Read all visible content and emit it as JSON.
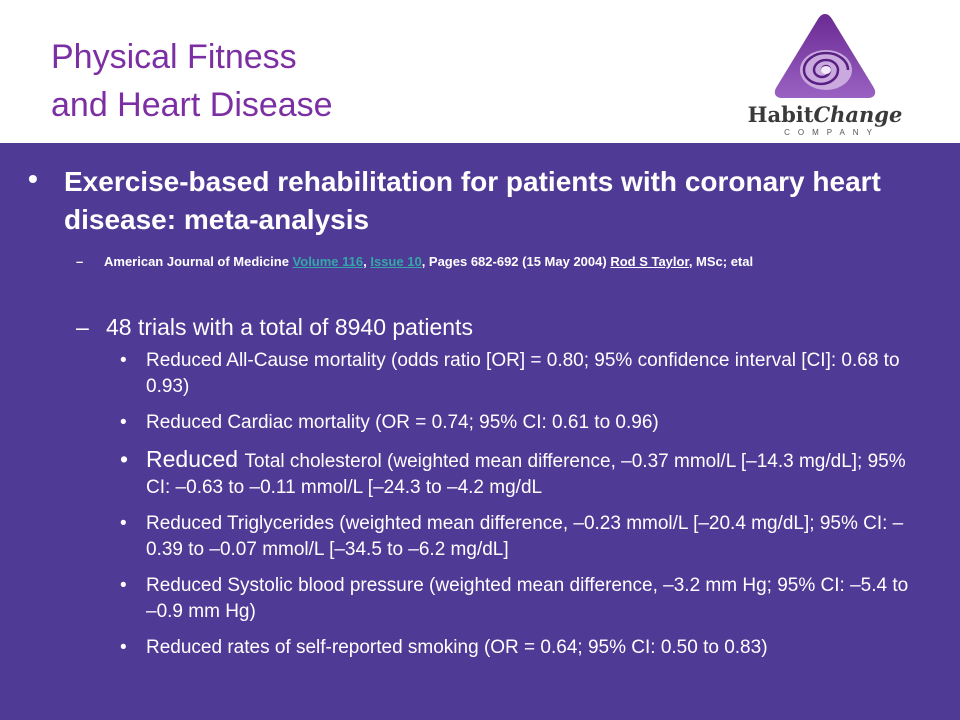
{
  "header": {
    "title_line1": "Physical Fitness",
    "title_line2": "and Heart Disease"
  },
  "logo": {
    "name_part1": "Habit",
    "name_part2": "Change",
    "company": "COMPANY",
    "colors": [
      "#7b2fa3",
      "#b48ad0",
      "#e8d8f0"
    ]
  },
  "main": {
    "bullet": "•",
    "headline": "Exercise-based rehabilitation for patients with coronary heart disease: meta-analysis",
    "reference": {
      "dash": "–",
      "journal": "American Journal of Medicine ",
      "volume": "Volume 116",
      "comma1": ", ",
      "issue": "Issue 10",
      "pages": ", Pages 682-692 (15 May 2004) ",
      "author": "Rod S Taylor",
      "credentials": ", MSc; etal"
    },
    "subpoint_dash": "–",
    "subpoint": "48 trials with a total of 8940 patients",
    "findings": [
      "Reduced All-Cause mortality (odds ratio [OR] = 0.80; 95% confidence interval [CI]: 0.68 to 0.93)",
      "Reduced Cardiac mortality (OR = 0.74; 95% CI: 0.61 to 0.96)",
      "Total cholesterol (weighted mean difference, –0.37 mmol/L [–14.3 mg/dL]; 95% CI: –0.63 to –0.11 mmol/L [–24.3 to –4.2 mg/dL",
      "Reduced Triglycerides (weighted mean difference, –0.23 mmol/L [–20.4 mg/dL]; 95% CI: –0.39 to –0.07 mmol/L [–34.5 to –6.2 mg/dL]",
      "Reduced Systolic blood pressure (weighted mean difference, –3.2 mm Hg; 95% CI: –5.4 to –0.9 mm Hg)",
      "Reduced rates of self-reported smoking (OR = 0.64; 95% CI: 0.50 to 0.83)"
    ],
    "finding3_prefix": "Reduced ",
    "item_bullet": "•"
  },
  "colors": {
    "title": "#7b2fa3",
    "content_bg": "#4f3a96",
    "link_teal": "#35a7a7"
  }
}
